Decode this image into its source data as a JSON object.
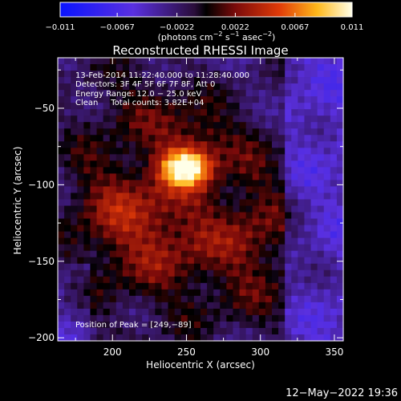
{
  "chart_data": {
    "type": "heatmap",
    "title": "Reconstructed RHESSI Image",
    "xlabel": "Heliocentric X (arcsec)",
    "ylabel": "Heliocentric Y (arcsec)",
    "xlim": [
      163,
      356
    ],
    "ylim": [
      -202,
      -17
    ],
    "x_ticks": [
      200,
      250,
      300,
      350
    ],
    "y_ticks": [
      -50,
      -100,
      -150,
      -200
    ],
    "colorbar": {
      "range": [
        -0.011,
        0.011
      ],
      "ticks": [
        -0.011,
        -0.0067,
        -0.0022,
        0.0022,
        0.0067,
        0.011
      ],
      "tick_labels": [
        "−0.011",
        "−0.0067",
        "−0.0022",
        "0.0022",
        "0.0067",
        "0.011"
      ],
      "unit_parts": [
        "(photons cm",
        "−2",
        " s",
        "−1",
        " asec",
        "−2",
        ")"
      ]
    },
    "annotations": [
      "13-Feb-2014 11:22:40.000 to 11:28:40.000",
      "Detectors: 3F 4F 5F 6F 7F 8F, Att 0",
      "Energy Range: 12.0 − 25.0 keV",
      "Clean     Total counts: 3.82E+04"
    ],
    "peak_label": "Position of Peak = [249,−89]",
    "peak_position": [
      249,
      -89
    ],
    "sources": [
      {
        "x": 249,
        "y": -89,
        "sx": 11,
        "sy": 8,
        "amp": 0.011
      },
      {
        "x": 258,
        "y": -74,
        "sx": 20,
        "sy": 16,
        "amp": 0.0042
      },
      {
        "x": 232,
        "y": -118,
        "sx": 34,
        "sy": 24,
        "amp": 0.0038
      },
      {
        "x": 262,
        "y": -155,
        "sx": 48,
        "sy": 30,
        "amp": 0.003
      },
      {
        "x": 195,
        "y": -105,
        "sx": 24,
        "sy": 48,
        "amp": 0.0023
      },
      {
        "x": 300,
        "y": -115,
        "sx": 16,
        "sy": 40,
        "amp": 0.0025
      },
      {
        "x": 230,
        "y": -45,
        "sx": 26,
        "sy": 18,
        "amp": 0.0022
      }
    ]
  },
  "timestamp": "12−May−2022 19:36"
}
